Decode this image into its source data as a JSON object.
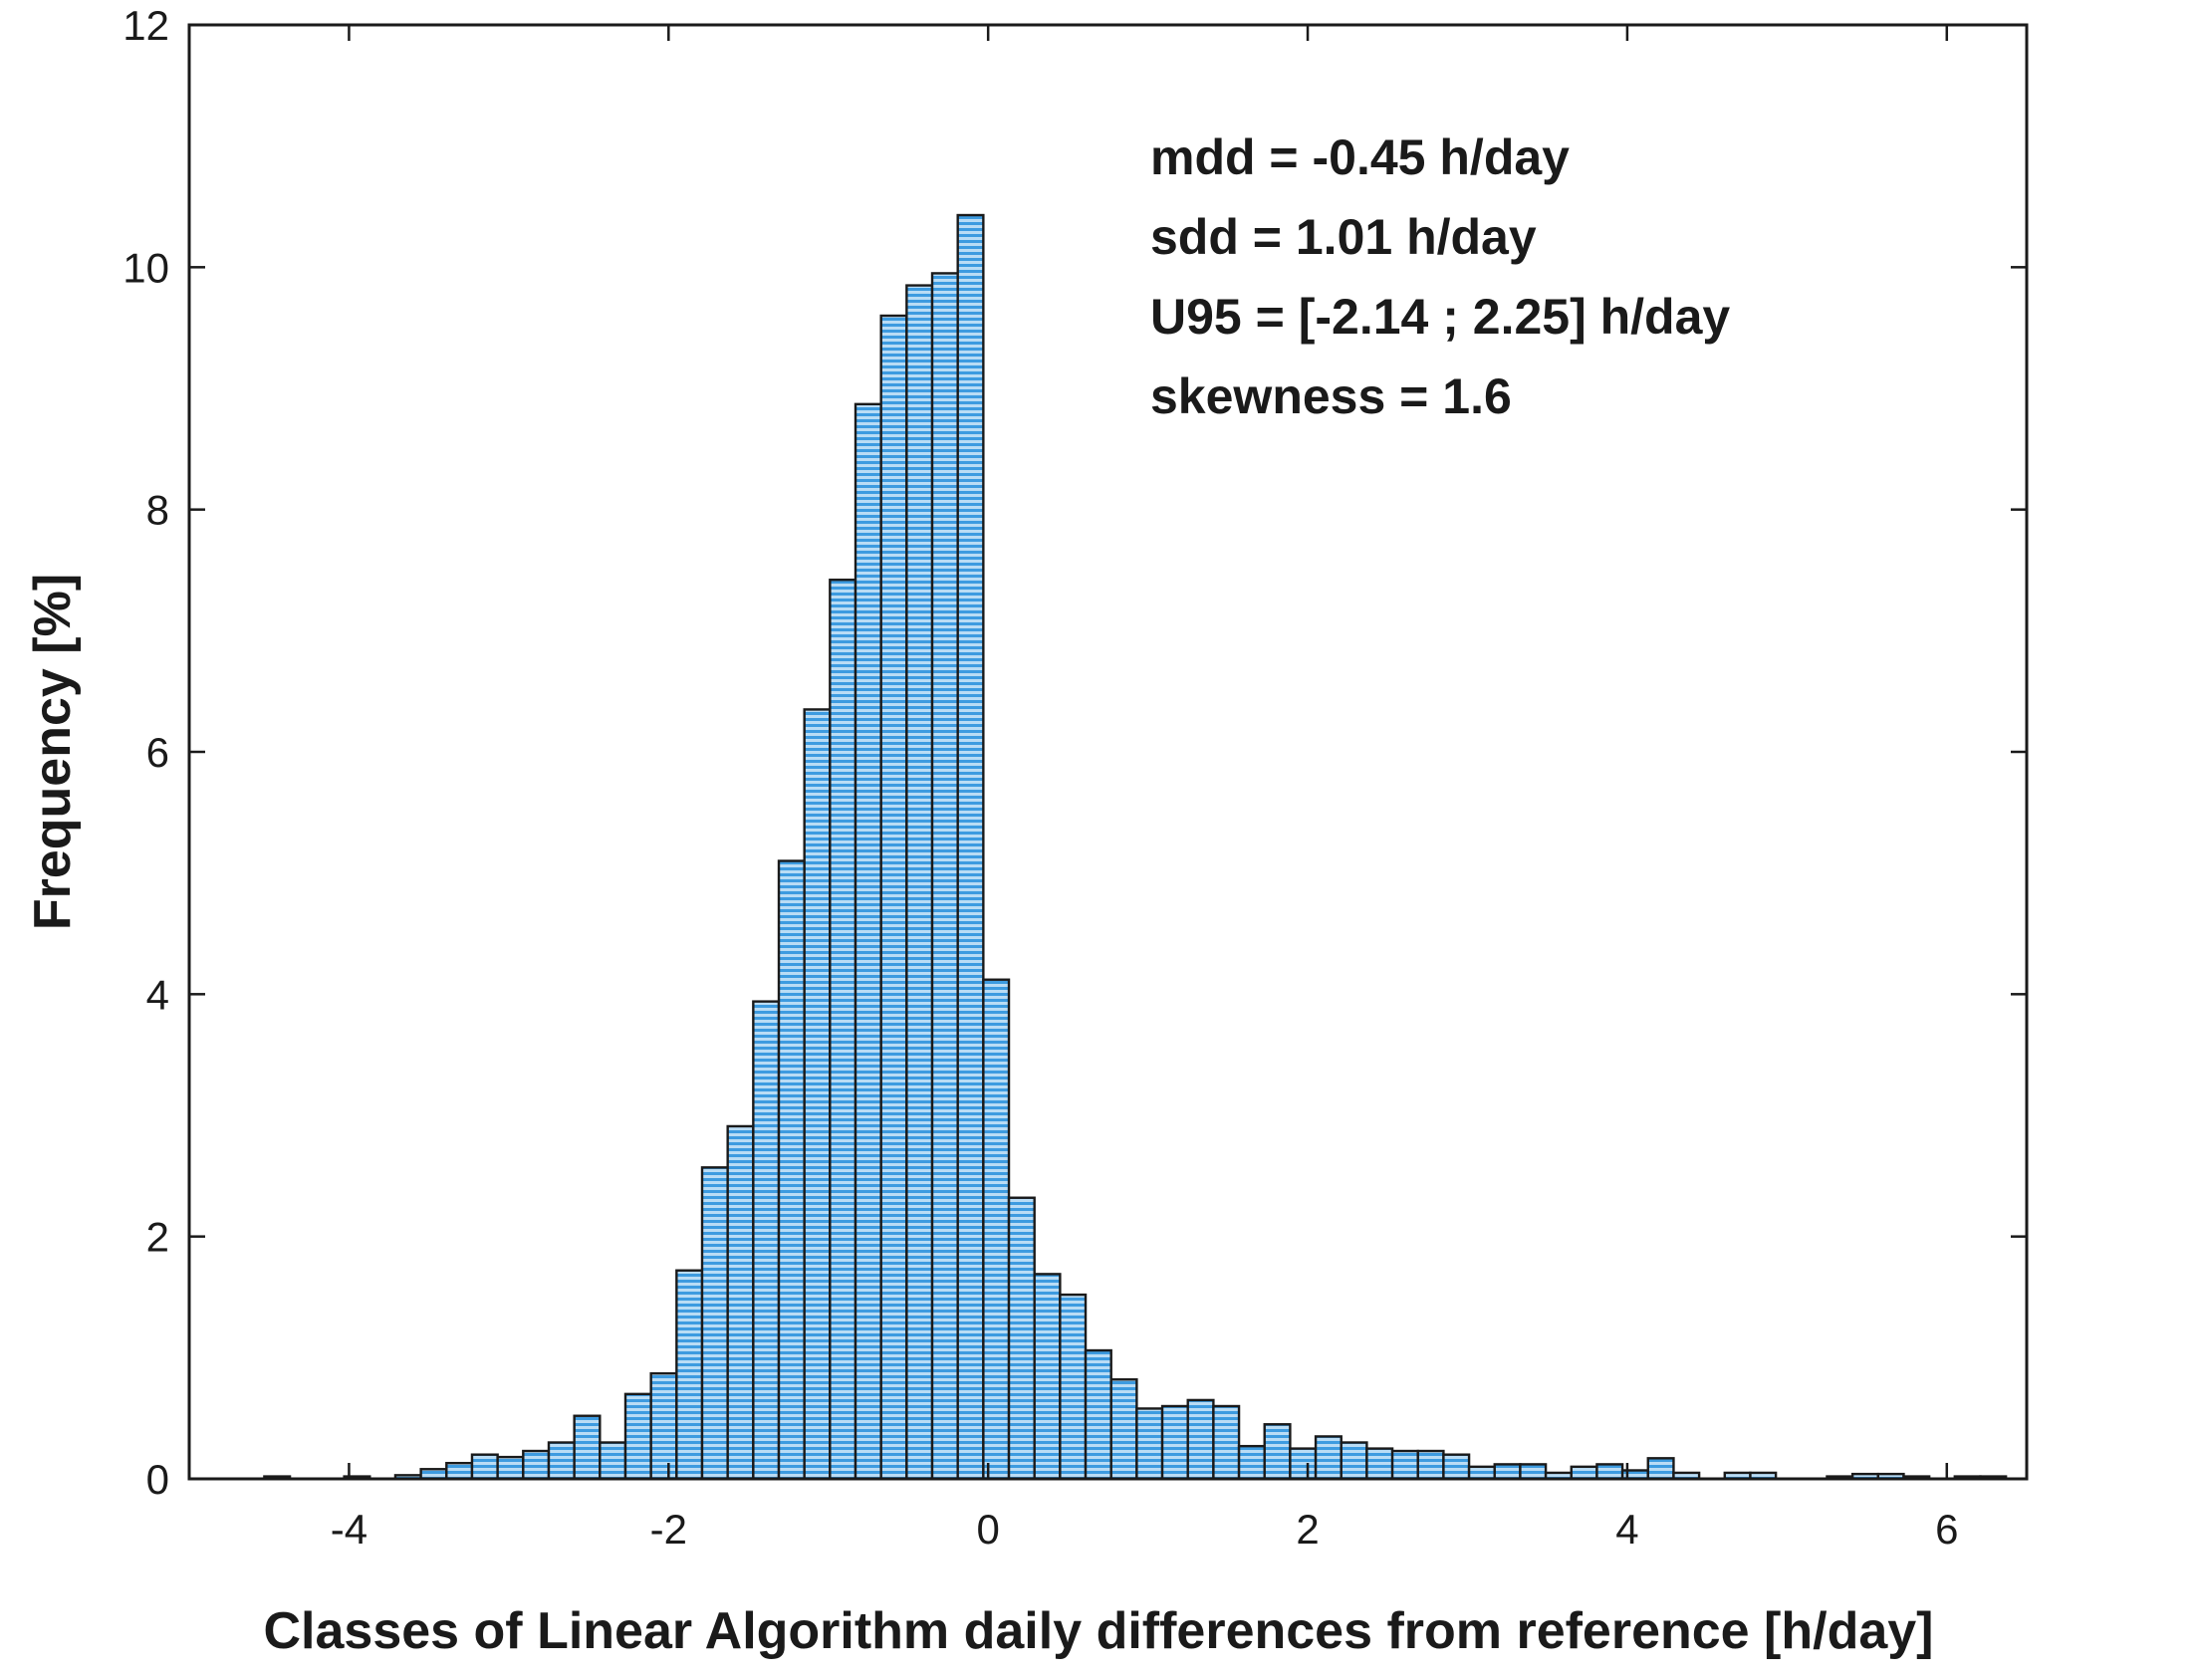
{
  "chart_data": {
    "type": "bar",
    "title": "",
    "xlabel": "Classes of Linear Algorithm daily differences from reference [h/day]",
    "ylabel": "Frequency [%]",
    "xlim": [
      -5,
      6.5
    ],
    "ylim": [
      0,
      12
    ],
    "bin_width": 0.16,
    "grid": false,
    "bar_color": "#5aaee6",
    "edge_color": "#1a1a1a",
    "x_ticks": [
      {
        "value": -4,
        "label": "-4"
      },
      {
        "value": -2,
        "label": "-2"
      },
      {
        "value": 0,
        "label": "0"
      },
      {
        "value": 2,
        "label": "2"
      },
      {
        "value": 4,
        "label": "4"
      },
      {
        "value": 6,
        "label": "6"
      }
    ],
    "y_ticks": [
      {
        "value": 0,
        "label": "0"
      },
      {
        "value": 2,
        "label": "2"
      },
      {
        "value": 4,
        "label": "4"
      },
      {
        "value": 6,
        "label": "6"
      },
      {
        "value": 8,
        "label": "8"
      },
      {
        "value": 10,
        "label": "10"
      },
      {
        "value": 12,
        "label": "12"
      }
    ],
    "annotations": [
      "mdd = -0.45 h/day",
      "sdd = 1.01 h/day",
      "U95 = [-2.14 ; 2.25] h/day",
      "skewness = 1.6"
    ],
    "bins": [
      {
        "x": -4.45,
        "y": 0.02
      },
      {
        "x": -3.95,
        "y": 0.02
      },
      {
        "x": -3.63,
        "y": 0.03
      },
      {
        "x": -3.47,
        "y": 0.08
      },
      {
        "x": -3.31,
        "y": 0.13
      },
      {
        "x": -3.15,
        "y": 0.2
      },
      {
        "x": -2.99,
        "y": 0.18
      },
      {
        "x": -2.83,
        "y": 0.23
      },
      {
        "x": -2.67,
        "y": 0.3
      },
      {
        "x": -2.51,
        "y": 0.52
      },
      {
        "x": -2.35,
        "y": 0.3
      },
      {
        "x": -2.19,
        "y": 0.7
      },
      {
        "x": -2.03,
        "y": 0.87
      },
      {
        "x": -1.87,
        "y": 1.72
      },
      {
        "x": -1.71,
        "y": 2.57
      },
      {
        "x": -1.55,
        "y": 2.91
      },
      {
        "x": -1.39,
        "y": 3.94
      },
      {
        "x": -1.23,
        "y": 5.1
      },
      {
        "x": -1.07,
        "y": 6.35
      },
      {
        "x": -0.91,
        "y": 7.42
      },
      {
        "x": -0.75,
        "y": 8.87
      },
      {
        "x": -0.59,
        "y": 9.6
      },
      {
        "x": -0.43,
        "y": 9.85
      },
      {
        "x": -0.27,
        "y": 9.95
      },
      {
        "x": -0.11,
        "y": 10.43
      },
      {
        "x": 0.05,
        "y": 4.12
      },
      {
        "x": 0.21,
        "y": 2.32
      },
      {
        "x": 0.37,
        "y": 1.69
      },
      {
        "x": 0.53,
        "y": 1.52
      },
      {
        "x": 0.69,
        "y": 1.06
      },
      {
        "x": 0.85,
        "y": 0.82
      },
      {
        "x": 1.01,
        "y": 0.58
      },
      {
        "x": 1.17,
        "y": 0.6
      },
      {
        "x": 1.33,
        "y": 0.65
      },
      {
        "x": 1.49,
        "y": 0.6
      },
      {
        "x": 1.65,
        "y": 0.27
      },
      {
        "x": 1.81,
        "y": 0.45
      },
      {
        "x": 1.97,
        "y": 0.25
      },
      {
        "x": 2.13,
        "y": 0.35
      },
      {
        "x": 2.29,
        "y": 0.3
      },
      {
        "x": 2.45,
        "y": 0.25
      },
      {
        "x": 2.61,
        "y": 0.23
      },
      {
        "x": 2.77,
        "y": 0.23
      },
      {
        "x": 2.93,
        "y": 0.2
      },
      {
        "x": 3.09,
        "y": 0.1
      },
      {
        "x": 3.25,
        "y": 0.12
      },
      {
        "x": 3.41,
        "y": 0.12
      },
      {
        "x": 3.57,
        "y": 0.05
      },
      {
        "x": 3.73,
        "y": 0.1
      },
      {
        "x": 3.89,
        "y": 0.12
      },
      {
        "x": 4.05,
        "y": 0.07
      },
      {
        "x": 4.21,
        "y": 0.17
      },
      {
        "x": 4.37,
        "y": 0.05
      },
      {
        "x": 4.69,
        "y": 0.05
      },
      {
        "x": 4.85,
        "y": 0.05
      },
      {
        "x": 5.33,
        "y": 0.02
      },
      {
        "x": 5.49,
        "y": 0.04
      },
      {
        "x": 5.65,
        "y": 0.04
      },
      {
        "x": 5.81,
        "y": 0.02
      },
      {
        "x": 6.13,
        "y": 0.02
      },
      {
        "x": 6.29,
        "y": 0.02
      }
    ]
  }
}
